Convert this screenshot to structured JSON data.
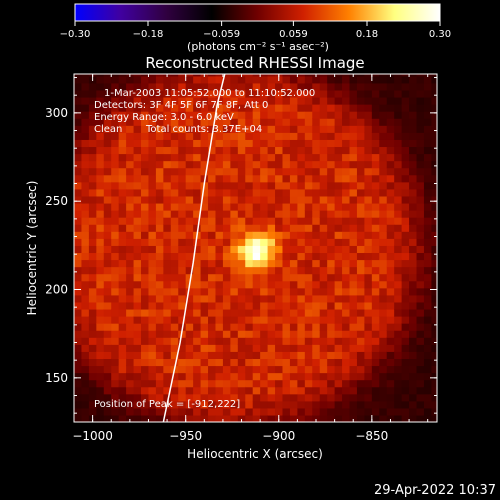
{
  "chart_data": {
    "type": "heatmap",
    "title": "Reconstructed RHESSI Image",
    "xlabel": "Heliocentric X (arcsec)",
    "ylabel": "Heliocentric Y (arcsec)",
    "xlim": [
      -1010,
      -815
    ],
    "ylim": [
      125,
      322
    ],
    "x_ticks": [
      -1000,
      -950,
      -900,
      -850
    ],
    "x_tick_labels": [
      "−1000",
      "−950",
      "−900",
      "−850"
    ],
    "y_ticks": [
      150,
      200,
      250,
      300
    ],
    "y_tick_labels": [
      "150",
      "200",
      "250",
      "300"
    ],
    "colorbar": {
      "range": [
        -0.3,
        0.3
      ],
      "ticks": [
        -0.3,
        -0.18,
        -0.059,
        0.059,
        0.18,
        0.3
      ],
      "tick_labels": [
        "−0.30",
        "−0.18",
        "−0.059",
        "0.059",
        "0.18",
        "0.30"
      ],
      "unit_label": "(photons cm⁻² s⁻¹ asec⁻²)",
      "colors": [
        "#0000ff",
        "#4000a0",
        "#300040",
        "#000000",
        "#700000",
        "#d02000",
        "#ff8000",
        "#ffff80",
        "#ffffff"
      ]
    },
    "source": {
      "center": [
        -912,
        222
      ],
      "sigma_arcsec": 7,
      "peak": 0.3,
      "background_disk_center": [
        -925,
        225
      ],
      "background_disk_radius_arcsec": 100,
      "background_level": 0.08,
      "outside_level": -0.04
    },
    "limb_curve": [
      [
        -962,
        125
      ],
      [
        -953,
        170
      ],
      [
        -946,
        215
      ],
      [
        -940,
        260
      ],
      [
        -933,
        305
      ],
      [
        -929,
        322
      ]
    ],
    "annotations": {
      "time_range": "1-Mar-2003 11:05:52.000 to 11:10:52.000",
      "detectors": "Detectors: 3F 4F 5F 6F 7F 8F, Att 0",
      "energy": "Energy Range: 3.0 - 6.0 keV",
      "clean": "Clean",
      "counts": "Total counts: 3.37E+04",
      "peak_position": "Position of Peak = [-912,222]"
    }
  },
  "footer": {
    "timestamp": "29-Apr-2022 10:37"
  }
}
